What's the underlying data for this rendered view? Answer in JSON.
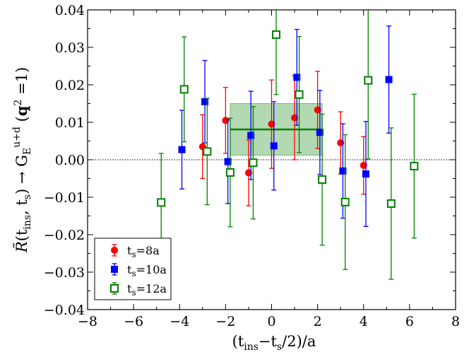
{
  "chart_data": {
    "type": "scatter",
    "title": "",
    "xlabel": "(t_ins−t_s/2)/a",
    "ylabel": "R̃(t_ins, t_s) → G_E^{u+d}(q^2 = 1)",
    "xlim": [
      -8,
      8
    ],
    "ylim": [
      -0.04,
      0.04
    ],
    "x_ticks": [
      -8,
      -6,
      -4,
      -2,
      0,
      2,
      4,
      6,
      8
    ],
    "x_tick_labels": [
      "−8",
      "−6",
      "−4",
      "−2",
      "0",
      "2",
      "4",
      "6",
      "8"
    ],
    "y_ticks": [
      -0.04,
      -0.03,
      -0.02,
      -0.01,
      0.0,
      0.01,
      0.02,
      0.03,
      0.04
    ],
    "y_tick_labels": [
      "−0.04",
      "−0.03",
      "−0.02",
      "−0.01",
      "0.00",
      "0.01",
      "0.02",
      "0.03",
      "0.04"
    ],
    "zero_line": true,
    "grid": false,
    "legend_position": "bottom-left",
    "series": [
      {
        "name": "t_s=8a",
        "legend_main": "t",
        "legend_sub": "s",
        "legend_rest": "=8a",
        "color": "#ff0000",
        "marker": "circle",
        "x": [
          -3.0,
          -2.0,
          -1.0,
          0.0,
          1.0,
          2.0,
          3.0,
          4.0
        ],
        "y": [
          0.0035,
          0.0105,
          -0.0035,
          0.0095,
          0.0112,
          0.0133,
          0.0045,
          -0.0015
        ],
        "err": [
          0.0085,
          0.0088,
          0.0088,
          0.0118,
          0.0112,
          0.0103,
          0.0083,
          0.0077
        ]
      },
      {
        "name": "t_s=10a",
        "legend_main": "t",
        "legend_sub": "s",
        "legend_rest": "=10a",
        "color": "#0000ff",
        "marker": "square",
        "x": [
          -3.9,
          -2.9,
          -1.9,
          -0.9,
          0.1,
          1.1,
          2.1,
          3.1,
          4.1,
          5.1
        ],
        "y": [
          0.0027,
          0.0155,
          -0.0005,
          0.0065,
          0.0037,
          0.022,
          0.0073,
          -0.003,
          -0.0038,
          0.0214
        ],
        "err": [
          0.0105,
          0.011,
          0.0112,
          0.0118,
          0.0118,
          0.0128,
          0.0112,
          0.0126,
          0.014,
          0.0143
        ]
      },
      {
        "name": "t_s=12a",
        "legend_main": "t",
        "legend_sub": "s",
        "legend_rest": "=12a",
        "color": "#008000",
        "marker": "open-square",
        "x": [
          -4.8,
          -3.8,
          -2.8,
          -1.8,
          -0.8,
          0.2,
          1.2,
          2.2,
          3.2,
          4.2,
          5.2,
          6.2
        ],
        "y": [
          -0.0114,
          0.0188,
          0.0022,
          -0.0034,
          -0.0008,
          0.0334,
          0.0174,
          -0.0053,
          -0.0113,
          0.0212,
          -0.0117,
          -0.0017
        ],
        "err": [
          0.0131,
          0.014,
          0.0142,
          0.0145,
          0.015,
          0.016,
          0.0155,
          0.0175,
          0.018,
          0.021,
          0.0202,
          0.0192
        ]
      }
    ],
    "fit_band": {
      "x_range": [
        -1.8,
        2.2
      ],
      "center": 0.0081,
      "low": 0.0012,
      "high": 0.015,
      "color": "#008000"
    }
  }
}
